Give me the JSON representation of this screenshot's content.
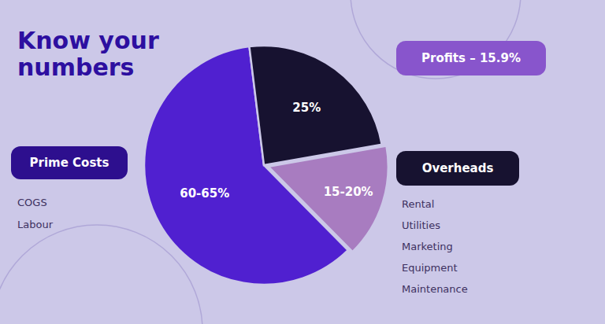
{
  "chart_data": {
    "type": "pie",
    "title": "Know your\nnumbers",
    "values": [
      62.5,
      15.9,
      25.0
    ],
    "value_labels": [
      "60-65%",
      "15-20%",
      "25%"
    ],
    "colors": [
      "#5020d0",
      "#a87cc0",
      "#171230"
    ],
    "data_labels": true,
    "annotations": [
      {
        "text": "Prime Costs",
        "color": "#2d0f8e",
        "items": [
          "COGS",
          "Labour"
        ]
      },
      {
        "text": "Profits – 15.9%",
        "color": "#8855cc",
        "items": []
      },
      {
        "text": "Overheads",
        "color": "#171230",
        "items": [
          "Rental",
          "Utilities",
          "Marketing",
          "Equipment",
          "Maintenance"
        ]
      }
    ]
  }
}
